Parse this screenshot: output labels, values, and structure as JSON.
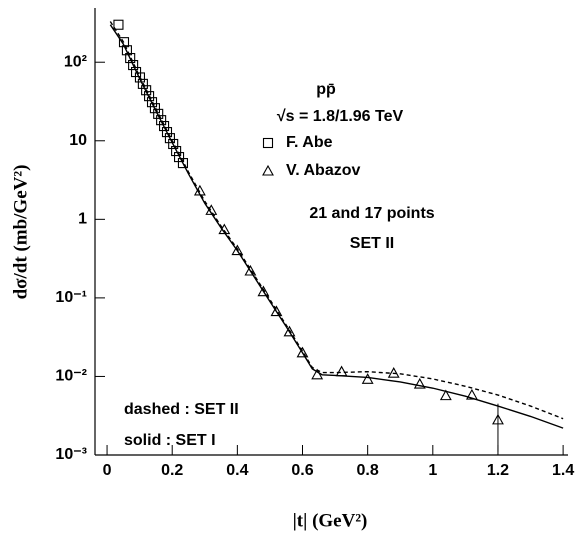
{
  "chart_data": {
    "type": "scatter",
    "y_label": "dσ/dt (mb/GeV²)",
    "x_label": "|t| (GeV²)",
    "log_y": true,
    "xlim": [
      -0.037,
      1.415
    ],
    "ylim": [
      0.001,
      490
    ],
    "xticks": [
      0,
      0.2,
      0.4,
      0.6,
      0.8,
      1,
      1.2,
      1.4
    ],
    "yticks": [
      {
        "value": 0.001,
        "label": "10⁻³"
      },
      {
        "value": 0.01,
        "label": "10⁻²"
      },
      {
        "value": 0.1,
        "label": "10⁻¹"
      },
      1,
      10,
      {
        "value": 100,
        "label": "10²"
      }
    ],
    "series": [
      {
        "name": "F. Abe",
        "marker": "square",
        "color": "#000000",
        "x": [
          0.035,
          0.052,
          0.061,
          0.071,
          0.08,
          0.089,
          0.101,
          0.11,
          0.12,
          0.129,
          0.138,
          0.147,
          0.157,
          0.166,
          0.175,
          0.184,
          0.193,
          0.203,
          0.212,
          0.221,
          0.233
        ],
        "values": [
          300,
          180,
          142,
          113,
          92,
          75,
          64,
          53,
          44,
          37,
          31,
          26,
          22,
          18.3,
          15.4,
          12.9,
          10.8,
          9.1,
          7.4,
          6.2,
          5.2
        ]
      },
      {
        "name": "V. Abazov",
        "marker": "triangle",
        "color": "#000000",
        "x": [
          0.285,
          0.32,
          0.36,
          0.4,
          0.44,
          0.48,
          0.52,
          0.56,
          0.6,
          0.645,
          0.72,
          0.8,
          0.88,
          0.96,
          1.04,
          1.12,
          1.2
        ],
        "values": [
          2.3,
          1.3,
          0.74,
          0.4,
          0.22,
          0.12,
          0.067,
          0.037,
          0.02,
          0.0105,
          0.0115,
          0.0092,
          0.011,
          0.008,
          0.0057,
          0.0058,
          0.0028
        ],
        "errors": [
          null,
          null,
          null,
          null,
          null,
          null,
          null,
          null,
          null,
          null,
          null,
          null,
          null,
          null,
          null,
          null,
          0.0017
        ]
      }
    ],
    "curves": [
      {
        "style": "dashed",
        "color": "#000000",
        "x": [
          0.01,
          0.05,
          0.1,
          0.15,
          0.2,
          0.25,
          0.3,
          0.35,
          0.4,
          0.45,
          0.5,
          0.55,
          0.6,
          0.63,
          0.66,
          0.7,
          0.8,
          0.9,
          1.0,
          1.1,
          1.2,
          1.3,
          1.4
        ],
        "values": [
          330,
          182,
          66,
          25.5,
          10,
          4.0,
          1.7,
          0.82,
          0.42,
          0.2,
          0.095,
          0.045,
          0.021,
          0.013,
          0.0112,
          0.0112,
          0.0115,
          0.0108,
          0.0093,
          0.0075,
          0.0058,
          0.0042,
          0.0029
        ]
      },
      {
        "style": "solid",
        "color": "#000000",
        "x": [
          0.01,
          0.05,
          0.1,
          0.15,
          0.2,
          0.25,
          0.3,
          0.35,
          0.4,
          0.45,
          0.5,
          0.55,
          0.6,
          0.63,
          0.66,
          0.7,
          0.8,
          0.9,
          1.0,
          1.1,
          1.2,
          1.3,
          1.4
        ],
        "values": [
          300,
          170,
          62,
          24,
          9.5,
          3.8,
          1.6,
          0.78,
          0.4,
          0.19,
          0.09,
          0.043,
          0.02,
          0.0125,
          0.0105,
          0.0103,
          0.0097,
          0.0085,
          0.0071,
          0.0056,
          0.0042,
          0.0031,
          0.0022
        ]
      }
    ],
    "annotations": [
      "pp̄",
      "√s = 1.8/1.96  TeV",
      "21 and 17 points",
      "SET II",
      "dashed : SET II",
      "solid : SET I"
    ]
  }
}
